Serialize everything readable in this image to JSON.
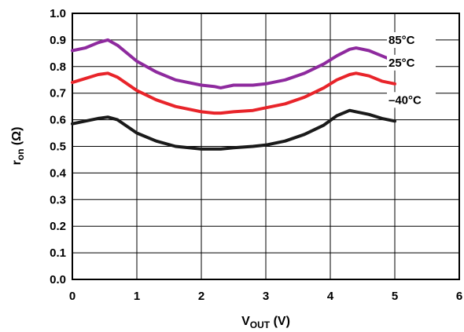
{
  "chart_data": {
    "type": "line",
    "xlabel_main": "V",
    "xlabel_sub": "OUT",
    "xlabel_unit": "(V)",
    "ylabel_main": "r",
    "ylabel_sub": "on",
    "ylabel_unit": "(Ω)",
    "xlim": [
      0,
      6
    ],
    "ylim": [
      0,
      1.0
    ],
    "xticks": [
      "0",
      "1",
      "2",
      "3",
      "4",
      "5",
      "6"
    ],
    "yticks": [
      "0.0",
      "0.1",
      "0.2",
      "0.3",
      "0.4",
      "0.5",
      "0.6",
      "0.7",
      "0.8",
      "0.9",
      "1.0"
    ],
    "grid": true,
    "series": [
      {
        "name": "85°C",
        "color": "#8e2a9e",
        "x": [
          0,
          0.2,
          0.4,
          0.55,
          0.7,
          1.0,
          1.3,
          1.6,
          2.0,
          2.2,
          2.3,
          2.5,
          2.8,
          3.0,
          3.3,
          3.6,
          3.9,
          4.1,
          4.3,
          4.4,
          4.6,
          4.8,
          5.0
        ],
        "y": [
          0.86,
          0.87,
          0.89,
          0.9,
          0.88,
          0.82,
          0.78,
          0.75,
          0.73,
          0.725,
          0.72,
          0.73,
          0.73,
          0.735,
          0.75,
          0.775,
          0.81,
          0.84,
          0.865,
          0.87,
          0.86,
          0.84,
          0.82
        ]
      },
      {
        "name": "25°C",
        "color": "#e8242a",
        "x": [
          0,
          0.2,
          0.4,
          0.55,
          0.7,
          1.0,
          1.3,
          1.6,
          2.0,
          2.2,
          2.3,
          2.5,
          2.8,
          3.0,
          3.3,
          3.6,
          3.9,
          4.1,
          4.3,
          4.4,
          4.6,
          4.8,
          5.0
        ],
        "y": [
          0.74,
          0.755,
          0.77,
          0.775,
          0.76,
          0.71,
          0.675,
          0.65,
          0.63,
          0.625,
          0.625,
          0.63,
          0.635,
          0.645,
          0.66,
          0.685,
          0.72,
          0.75,
          0.77,
          0.775,
          0.765,
          0.745,
          0.735
        ]
      },
      {
        "name": "–40°C",
        "color": "#1a1a1a",
        "x": [
          0,
          0.2,
          0.4,
          0.55,
          0.7,
          1.0,
          1.3,
          1.6,
          2.0,
          2.2,
          2.3,
          2.5,
          2.8,
          3.0,
          3.3,
          3.6,
          3.9,
          4.1,
          4.3,
          4.4,
          4.6,
          4.8,
          5.0
        ],
        "y": [
          0.585,
          0.595,
          0.605,
          0.61,
          0.6,
          0.55,
          0.52,
          0.5,
          0.49,
          0.49,
          0.49,
          0.495,
          0.5,
          0.505,
          0.52,
          0.545,
          0.58,
          0.615,
          0.635,
          0.63,
          0.62,
          0.605,
          0.595
        ]
      }
    ]
  }
}
